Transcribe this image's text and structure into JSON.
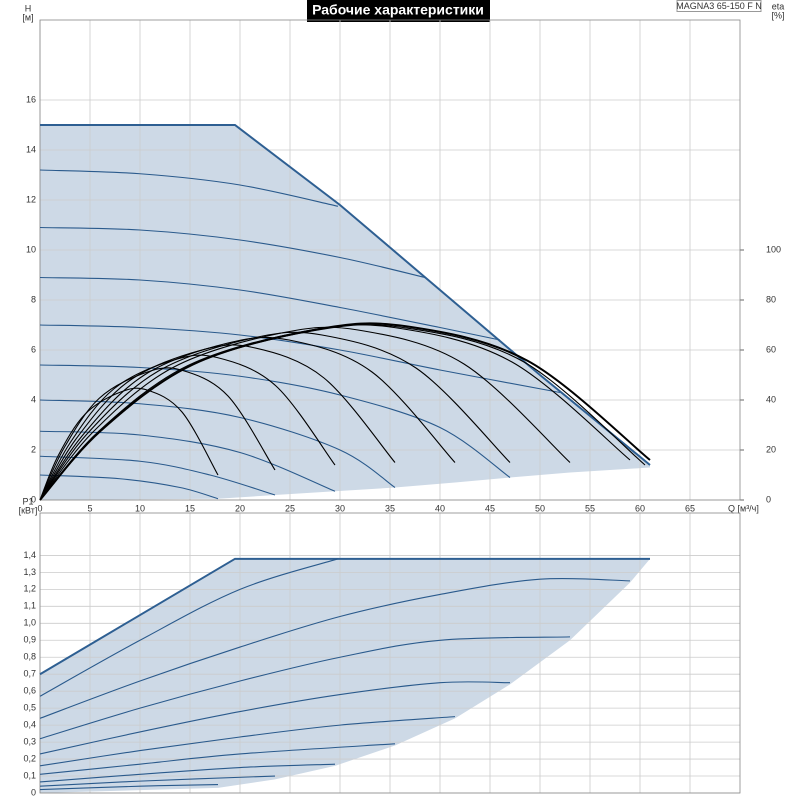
{
  "header": {
    "title": "Рабочие характеристики",
    "model": "MAGNA3 65-150 F N"
  },
  "chart_data": [
    {
      "type": "line",
      "x_label": "Q [м³/ч]",
      "y_label": "H",
      "y_unit": "[м]",
      "y2_label": "eta",
      "y2_unit": "[%]",
      "xlim": [
        0,
        70
      ],
      "xticks": [
        0,
        5,
        10,
        15,
        20,
        25,
        30,
        35,
        40,
        45,
        50,
        55,
        60,
        65
      ],
      "show_xtick_labels": true,
      "ylim": [
        0,
        19.2
      ],
      "yticks": [
        0,
        2,
        4,
        6,
        8,
        10,
        12,
        14,
        16
      ],
      "y2lim": [
        0,
        192
      ],
      "y2ticks": [
        0,
        20,
        40,
        60,
        80,
        100
      ],
      "grid": true,
      "area": {
        "color": "#cdd9e6",
        "x": [
          0,
          17.8,
          23.5,
          29.5,
          35.5,
          41.5,
          47,
          53,
          59,
          61
        ],
        "values": [
          0,
          0.05,
          0.2,
          0.35,
          0.5,
          0.7,
          0.9,
          1.1,
          1.25,
          1.3
        ]
      },
      "series": [
        {
          "color": "#2e5f92",
          "emphasis": true,
          "interpolation": "linear",
          "x": [
            0,
            19.5,
            30,
            40,
            50,
            61
          ],
          "values": [
            15,
            15,
            11.8,
            8.4,
            5,
            1.4
          ]
        },
        {
          "color": "#2a5a8c",
          "x": [
            0,
            10,
            20,
            29.8
          ],
          "values": [
            13.2,
            13.05,
            12.6,
            11.75
          ]
        },
        {
          "color": "#2a5a8c",
          "x": [
            0,
            10,
            20,
            30,
            38.5
          ],
          "values": [
            10.9,
            10.8,
            10.4,
            9.7,
            8.9
          ]
        },
        {
          "color": "#2a5a8c",
          "x": [
            0,
            10,
            20,
            30,
            40,
            46
          ],
          "values": [
            8.9,
            8.8,
            8.4,
            7.7,
            6.9,
            6.4
          ]
        },
        {
          "color": "#2a5a8c",
          "x": [
            0,
            10,
            20,
            30,
            40,
            52
          ],
          "values": [
            7,
            6.9,
            6.6,
            6,
            5.2,
            4.3
          ]
        },
        {
          "color": "#2a5a8c",
          "x": [
            0,
            10,
            20,
            30,
            40,
            47
          ],
          "values": [
            5.4,
            5.3,
            4.95,
            4.2,
            2.9,
            0.9
          ]
        },
        {
          "color": "#2a5a8c",
          "x": [
            0,
            10,
            20,
            30,
            35.5
          ],
          "values": [
            4,
            3.85,
            3.3,
            2,
            0.5
          ]
        },
        {
          "color": "#2a5a8c",
          "x": [
            0,
            10,
            20,
            29.5
          ],
          "values": [
            2.75,
            2.6,
            1.9,
            0.35
          ]
        },
        {
          "color": "#2a5a8c",
          "x": [
            0,
            10,
            17,
            23.5
          ],
          "values": [
            1.75,
            1.55,
            1,
            0.2
          ]
        },
        {
          "color": "#2a5a8c",
          "x": [
            0,
            8,
            14,
            17.8
          ],
          "values": [
            1,
            0.85,
            0.5,
            0.05
          ]
        },
        {
          "color": "#000000",
          "axis": "y2",
          "x": [
            0,
            1.8,
            4.5,
            8,
            10.7,
            14.2,
            17.8
          ],
          "values": [
            0,
            17.6,
            34.3,
            43.1,
            44,
            35.2,
            10
          ]
        },
        {
          "color": "#000000",
          "axis": "y2",
          "x": [
            0,
            2.4,
            5.9,
            10.6,
            14.1,
            18.8,
            23.5
          ],
          "values": [
            0,
            20.8,
            40.6,
            51,
            52,
            41.6,
            12
          ]
        },
        {
          "color": "#000000",
          "axis": "y2",
          "x": [
            0,
            3,
            7.4,
            13.3,
            17.7,
            23.6,
            29.5
          ],
          "values": [
            0,
            22.8,
            44.5,
            55.9,
            57,
            45.6,
            14
          ]
        },
        {
          "color": "#000000",
          "axis": "y2",
          "x": [
            0,
            3.6,
            8.9,
            16,
            21.3,
            28.4,
            35.5
          ],
          "values": [
            0,
            24.4,
            47.6,
            59.8,
            61,
            48.8,
            15
          ]
        },
        {
          "color": "#000000",
          "axis": "y2",
          "x": [
            0,
            4.2,
            10.4,
            18.7,
            24.9,
            33.2,
            41.5
          ],
          "values": [
            0,
            25.6,
            49.9,
            62.7,
            64,
            51.2,
            15
          ]
        },
        {
          "color": "#000000",
          "axis": "y2",
          "x": [
            0,
            4.7,
            11.8,
            21.2,
            28.2,
            37.6,
            47
          ],
          "values": [
            0,
            26.4,
            51.5,
            64.7,
            66,
            52.8,
            15
          ]
        },
        {
          "color": "#000000",
          "axis": "y2",
          "x": [
            0,
            5.3,
            13.3,
            23.9,
            31.8,
            42.4,
            53
          ],
          "values": [
            0,
            27.2,
            53,
            66.6,
            68,
            54.4,
            15
          ]
        },
        {
          "color": "#000000",
          "axis": "y2",
          "x": [
            0,
            5.9,
            14.8,
            26.6,
            35.4,
            47.2,
            59
          ],
          "values": [
            0,
            27.6,
            53.8,
            67.6,
            69,
            55.2,
            16
          ]
        },
        {
          "color": "#000000",
          "axis": "y2",
          "x": [
            0,
            6.1,
            15.1,
            27.2,
            36.3,
            48.4,
            60.5
          ],
          "values": [
            0,
            27.6,
            53.8,
            67.6,
            69,
            55.2,
            14
          ]
        },
        {
          "color": "#000000",
          "axis": "y2",
          "emphasis": true,
          "x": [
            0,
            6.1,
            15.3,
            27.5,
            36.6,
            48.8,
            61
          ],
          "values": [
            0,
            27.8,
            54.2,
            68.1,
            69.5,
            55.6,
            16
          ]
        }
      ]
    },
    {
      "type": "line",
      "y_label": "P1",
      "y_unit": "[кВт]",
      "xlim": [
        0,
        70
      ],
      "xticks": [
        0,
        5,
        10,
        15,
        20,
        25,
        30,
        35,
        40,
        45,
        50,
        55,
        60,
        65
      ],
      "show_xtick_labels": false,
      "ylim": [
        0,
        1.65
      ],
      "yticks": [
        0,
        {
          "value": 0.1,
          "label": "0,1"
        },
        {
          "value": 0.2,
          "label": "0,2"
        },
        {
          "value": 0.3,
          "label": "0,3"
        },
        {
          "value": 0.4,
          "label": "0,4"
        },
        {
          "value": 0.5,
          "label": "0,5"
        },
        {
          "value": 0.6,
          "label": "0,6"
        },
        {
          "value": 0.7,
          "label": "0,7"
        },
        {
          "value": 0.8,
          "label": "0,8"
        },
        {
          "value": 0.9,
          "label": "0,9"
        },
        {
          "value": 1.0,
          "label": "1,0"
        },
        {
          "value": 1.1,
          "label": "1,1"
        },
        {
          "value": 1.2,
          "label": "1,2"
        },
        {
          "value": 1.3,
          "label": "1,3"
        },
        {
          "value": 1.4,
          "label": "1,4"
        }
      ],
      "grid": true,
      "area": {
        "color": "#cdd9e6",
        "x": [
          0,
          17.8,
          23.5,
          29.5,
          35.5,
          41.5,
          47,
          53,
          59,
          61
        ],
        "values": [
          0,
          0.03,
          0.08,
          0.16,
          0.28,
          0.44,
          0.64,
          0.9,
          1.24,
          1.38
        ]
      },
      "series": [
        {
          "color": "#2e5f92",
          "emphasis": true,
          "interpolation": "linear",
          "x": [
            0,
            19.5,
            61
          ],
          "values": [
            0.7,
            1.38,
            1.38
          ]
        },
        {
          "color": "#2a5a8c",
          "x": [
            0,
            10,
            20,
            29.8
          ],
          "values": [
            0.57,
            0.9,
            1.2,
            1.38
          ]
        },
        {
          "color": "#2a5a8c",
          "x": [
            0,
            10,
            20,
            30,
            40,
            50,
            59
          ],
          "values": [
            0.44,
            0.66,
            0.86,
            1.04,
            1.17,
            1.26,
            1.25
          ]
        },
        {
          "color": "#2a5a8c",
          "x": [
            0,
            10,
            20,
            30,
            40,
            53
          ],
          "values": [
            0.32,
            0.5,
            0.66,
            0.8,
            0.9,
            0.92
          ]
        },
        {
          "color": "#2a5a8c",
          "x": [
            0,
            10,
            20,
            30,
            40,
            47
          ],
          "values": [
            0.23,
            0.36,
            0.48,
            0.58,
            0.65,
            0.65
          ]
        },
        {
          "color": "#2a5a8c",
          "x": [
            0,
            10,
            20,
            30,
            41.5
          ],
          "values": [
            0.16,
            0.25,
            0.33,
            0.4,
            0.45
          ]
        },
        {
          "color": "#2a5a8c",
          "x": [
            0,
            10,
            20,
            35.5
          ],
          "values": [
            0.11,
            0.17,
            0.23,
            0.29
          ]
        },
        {
          "color": "#2a5a8c",
          "x": [
            0,
            10,
            20,
            29.5
          ],
          "values": [
            0.065,
            0.11,
            0.15,
            0.17
          ]
        },
        {
          "color": "#2a5a8c",
          "x": [
            0,
            10,
            23.5
          ],
          "values": [
            0.04,
            0.07,
            0.1
          ]
        },
        {
          "color": "#2a5a8c",
          "x": [
            0,
            10,
            17.8
          ],
          "values": [
            0.02,
            0.04,
            0.05
          ]
        }
      ]
    }
  ]
}
